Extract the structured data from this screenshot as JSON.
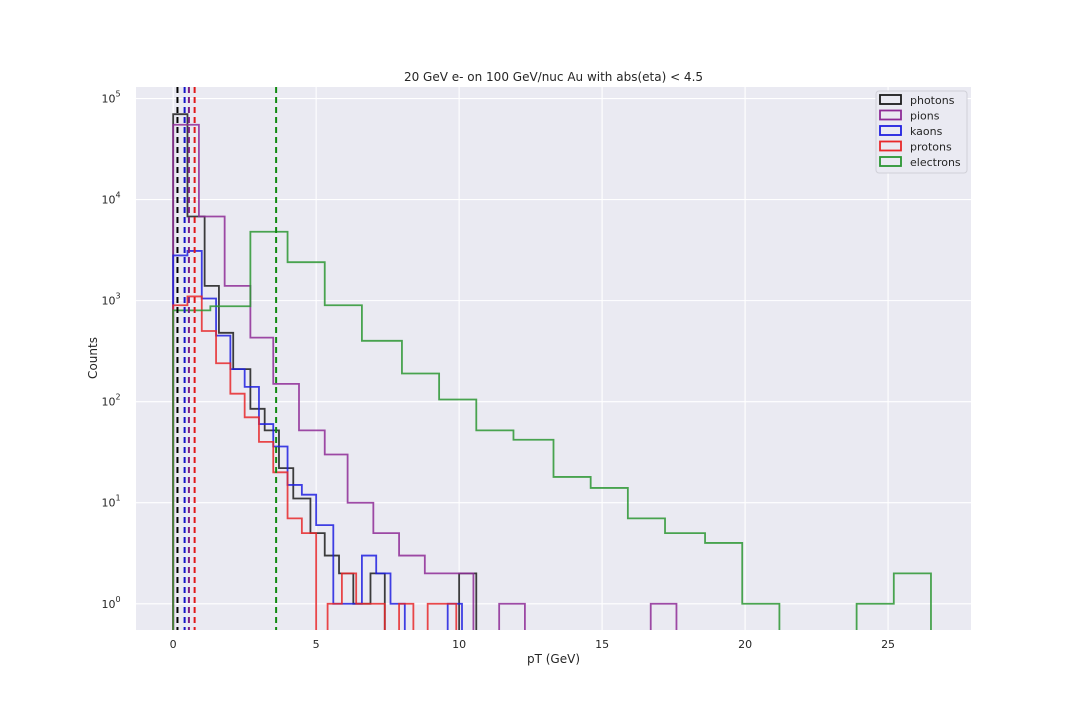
{
  "chart_data": {
    "type": "line",
    "title": "20 GeV e- on 100 GeV/nuc Au with abs(eta) < 4.5",
    "xlabel": "pT (GeV)",
    "ylabel": "Counts",
    "yscale": "log",
    "xlim": [
      -1.3,
      27.9
    ],
    "ylim": [
      0.55,
      130000
    ],
    "x_ticks": [
      0,
      5,
      10,
      15,
      20,
      25
    ],
    "y_ticks": [
      1,
      10,
      100,
      1000,
      10000,
      100000
    ],
    "grid": true,
    "legend_position": "top-right",
    "series": [
      {
        "name": "photons",
        "color": "#1c1c1c",
        "mean_line": 0.15,
        "edges": [
          0,
          0.5,
          1.1,
          1.6,
          2.1,
          2.7,
          3.2,
          3.7,
          4.2,
          4.8,
          5.3,
          5.8,
          6.3,
          6.9,
          7.4,
          7.9,
          8.4,
          9.0,
          9.5,
          10.0,
          10.6
        ],
        "counts": [
          70000,
          6800,
          1400,
          480,
          210,
          85,
          52,
          22,
          11,
          5,
          3,
          2,
          1,
          2,
          0,
          0,
          0,
          0,
          0,
          2
        ]
      },
      {
        "name": "pions",
        "color": "#8e2c96",
        "mean_line": 0.55,
        "edges": [
          0,
          0.9,
          1.8,
          2.7,
          3.5,
          4.4,
          5.3,
          6.1,
          7.0,
          7.9,
          8.8,
          9.7,
          10.5,
          11.4,
          12.3,
          13.2,
          14.0,
          14.9,
          15.8,
          16.7,
          17.6
        ],
        "counts": [
          55000,
          6800,
          1400,
          430,
          150,
          52,
          30,
          10,
          5,
          3,
          2,
          2,
          0,
          1,
          0,
          0,
          0,
          0,
          0,
          1
        ]
      },
      {
        "name": "kaons",
        "color": "#2020e0",
        "mean_line": 0.4,
        "edges": [
          0,
          0.5,
          1.0,
          1.5,
          2.0,
          2.5,
          3.0,
          3.5,
          4.0,
          4.5,
          5.0,
          5.6,
          6.1,
          6.6,
          7.1,
          7.6,
          8.1,
          8.6,
          9.1,
          9.6,
          10.1
        ],
        "counts": [
          2800,
          3100,
          1050,
          450,
          210,
          140,
          60,
          36,
          15,
          12,
          6,
          1,
          1,
          3,
          2,
          1,
          0,
          0,
          0,
          1
        ]
      },
      {
        "name": "protons",
        "color": "#e8282a",
        "mean_line": 0.75,
        "edges": [
          0,
          0.5,
          1.0,
          1.5,
          2.0,
          2.5,
          3.0,
          3.5,
          4.0,
          4.5,
          5.0,
          5.4,
          5.9,
          6.4,
          6.9,
          7.4,
          7.9,
          8.4,
          8.9,
          9.4,
          9.9
        ],
        "counts": [
          900,
          1100,
          500,
          240,
          120,
          70,
          40,
          20,
          7,
          5,
          0,
          1,
          2,
          1,
          1,
          0,
          1,
          0,
          1,
          1
        ]
      },
      {
        "name": "electrons",
        "color": "#2b9632",
        "mean_line": 3.6,
        "edges": [
          0,
          1.3,
          2.7,
          4.0,
          5.3,
          6.6,
          8.0,
          9.3,
          10.6,
          11.9,
          13.3,
          14.6,
          15.9,
          17.2,
          18.6,
          19.9,
          21.2,
          22.5,
          23.9,
          25.2,
          26.5
        ],
        "counts": [
          800,
          880,
          4800,
          2400,
          900,
          400,
          190,
          105,
          52,
          42,
          18,
          14,
          7,
          5,
          4,
          1,
          0,
          0,
          1,
          2
        ]
      }
    ]
  }
}
